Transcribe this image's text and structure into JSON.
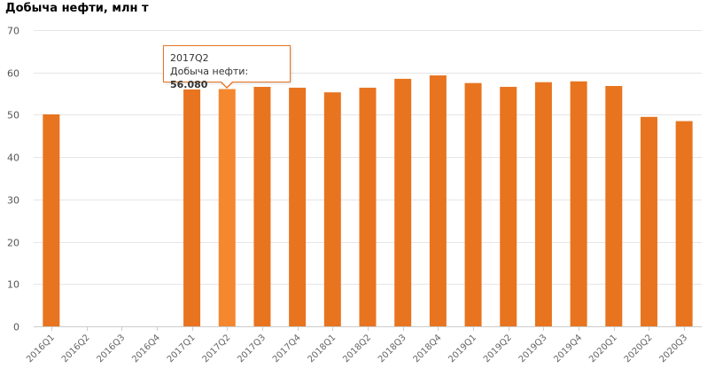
{
  "chart_data": {
    "type": "bar",
    "title": "Добыча нефти, млн т",
    "xlabel": "",
    "ylabel": "",
    "ylim": [
      0,
      70
    ],
    "yticks": [
      0,
      10,
      20,
      30,
      40,
      50,
      60,
      70
    ],
    "grid": true,
    "categories": [
      "2016Q1",
      "2016Q2",
      "2016Q3",
      "2016Q4",
      "2017Q1",
      "2017Q2",
      "2017Q3",
      "2017Q4",
      "2018Q1",
      "2018Q2",
      "2018Q3",
      "2018Q4",
      "2019Q1",
      "2019Q2",
      "2019Q3",
      "2019Q4",
      "2020Q1",
      "2020Q2",
      "2020Q3"
    ],
    "values": [
      50.1,
      null,
      null,
      null,
      56.0,
      56.08,
      56.6,
      56.4,
      55.3,
      56.4,
      58.5,
      59.3,
      57.5,
      56.6,
      57.7,
      57.9,
      56.8,
      49.5,
      48.5
    ],
    "bar_color": "#e8741f",
    "highlight_color": "#f5872f",
    "highlight_index": 5
  },
  "tooltip": {
    "category": "2017Q2",
    "label": "Добыча нефти:",
    "value": "56.080"
  }
}
